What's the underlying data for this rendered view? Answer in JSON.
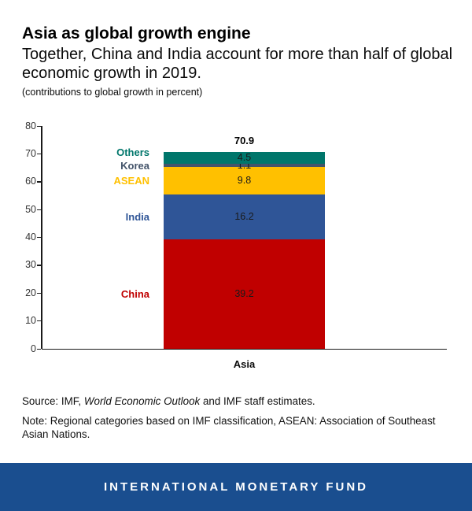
{
  "header": {
    "title": "Asia as global growth engine",
    "subtitle": "Together, China and India account for more than half of global economic growth in 2019.",
    "units_note": "(contributions to global growth in percent)"
  },
  "chart_data": {
    "type": "bar",
    "stacked": true,
    "title": "Asia as global growth engine",
    "subtitle": "Together, China and India account for more than half of global economic growth in 2019.",
    "units": "contributions to global growth in percent",
    "categories": [
      "Asia"
    ],
    "series": [
      {
        "name": "China",
        "values": [
          39.2
        ],
        "value_label": "39.2",
        "color": "#c00000"
      },
      {
        "name": "India",
        "values": [
          16.2
        ],
        "value_label": "16.2",
        "color": "#2f5597"
      },
      {
        "name": "ASEAN",
        "values": [
          9.8
        ],
        "value_label": "9.8",
        "color": "#ffc000"
      },
      {
        "name": "Korea",
        "values": [
          1.1
        ],
        "value_label": "1.1",
        "color": "#44546a"
      },
      {
        "name": "Others",
        "values": [
          4.5
        ],
        "value_label": "4.5",
        "color": "#00766b"
      }
    ],
    "total": 70.9,
    "total_label": "70.9",
    "xlabel": "",
    "ylabel": "",
    "ylim": [
      0,
      80
    ],
    "yticks": [
      0,
      10,
      20,
      30,
      40,
      50,
      60,
      70,
      80
    ],
    "grid": false,
    "legend_position": "series-labels-left-of-bar"
  },
  "footnotes": {
    "source_prefix": "Source: IMF, ",
    "source_italic": "World Economic Outlook",
    "source_suffix": " and IMF staff estimates.",
    "note_line": "Note: Regional categories based on IMF classification, ASEAN: Association of Southeast Asian Nations."
  },
  "footer": {
    "brand": "INTERNATIONAL MONETARY FUND",
    "bg_color": "#1a4e8f"
  }
}
